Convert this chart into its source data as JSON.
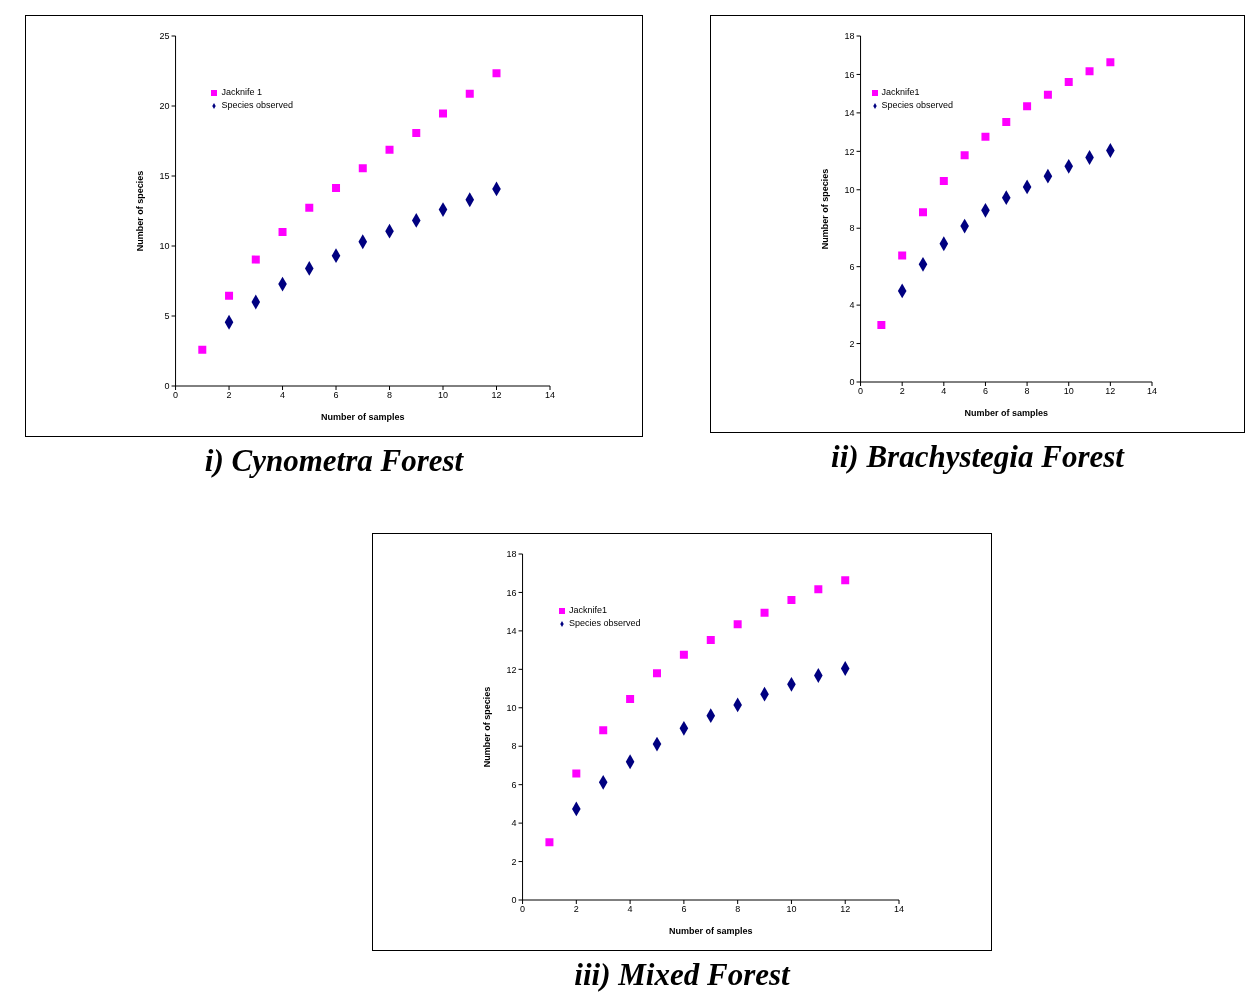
{
  "chart_data": [
    {
      "type": "scatter",
      "title": "i) Cynometra Forest",
      "xlabel": "Number of samples",
      "ylabel": "Number of species",
      "x": [
        1,
        2,
        3,
        4,
        5,
        6,
        7,
        8,
        9,
        10,
        11,
        12
      ],
      "xlim": [
        0,
        14
      ],
      "xticks": [
        0,
        2,
        4,
        6,
        8,
        10,
        12,
        14
      ],
      "ylim": [
        0,
        25
      ],
      "yticks": [
        0,
        5,
        10,
        15,
        20,
        25
      ],
      "grid": false,
      "legend": "top left",
      "series": [
        {
          "name": "Species observed",
          "color": "#000080",
          "marker": "diamond",
          "values": [
            null,
            4.55,
            6.0,
            7.28,
            8.4,
            9.31,
            10.3,
            11.06,
            11.83,
            12.6,
            13.3,
            14.08
          ]
        },
        {
          "name": "Jacknife 1",
          "color": "#ff00ff",
          "marker": "square",
          "values": [
            2.59,
            6.44,
            9.03,
            11.0,
            12.74,
            14.15,
            15.55,
            16.88,
            18.07,
            19.47,
            20.87,
            22.34
          ]
        }
      ]
    },
    {
      "type": "scatter",
      "title": "ii) Brachystegia Forest",
      "xlabel": "Number of samples",
      "ylabel": "Number of species",
      "x": [
        1,
        2,
        3,
        4,
        5,
        6,
        7,
        8,
        9,
        10,
        11,
        12
      ],
      "xlim": [
        0,
        14
      ],
      "xticks": [
        0,
        2,
        4,
        6,
        8,
        10,
        12,
        14
      ],
      "ylim": [
        0,
        18
      ],
      "yticks": [
        0,
        2,
        4,
        6,
        8,
        10,
        12,
        14,
        16,
        18
      ],
      "grid": false,
      "legend": "top left",
      "series": [
        {
          "name": "Species observed",
          "color": "#000080",
          "marker": "diamond",
          "values": [
            null,
            4.74,
            6.12,
            7.19,
            8.11,
            8.93,
            9.59,
            10.15,
            10.71,
            11.22,
            11.68,
            12.04
          ]
        },
        {
          "name": "Jacknife1",
          "color": "#ff00ff",
          "marker": "square",
          "values": [
            2.96,
            6.58,
            8.83,
            10.46,
            11.79,
            12.76,
            13.52,
            14.34,
            14.95,
            15.61,
            16.17,
            16.63
          ]
        }
      ]
    },
    {
      "type": "scatter",
      "title": "iii) Mixed Forest",
      "xlabel": "Number of samples",
      "ylabel": "Number of species",
      "x": [
        1,
        2,
        3,
        4,
        5,
        6,
        7,
        8,
        9,
        10,
        11,
        12
      ],
      "xlim": [
        0,
        14
      ],
      "xticks": [
        0,
        2,
        4,
        6,
        8,
        10,
        12,
        14
      ],
      "ylim": [
        0,
        18
      ],
      "yticks": [
        0,
        2,
        4,
        6,
        8,
        10,
        12,
        14,
        16,
        18
      ],
      "grid": false,
      "legend": "top left",
      "series": [
        {
          "name": "Species observed",
          "color": "#000080",
          "marker": "diamond",
          "values": [
            null,
            4.74,
            6.12,
            7.19,
            8.11,
            8.93,
            9.59,
            10.15,
            10.71,
            11.22,
            11.68,
            12.04
          ]
        },
        {
          "name": "Jacknife1",
          "color": "#ff00ff",
          "marker": "square",
          "values": [
            3.0,
            6.58,
            8.83,
            10.46,
            11.79,
            12.76,
            13.52,
            14.34,
            14.95,
            15.61,
            16.17,
            16.63
          ]
        }
      ]
    }
  ]
}
